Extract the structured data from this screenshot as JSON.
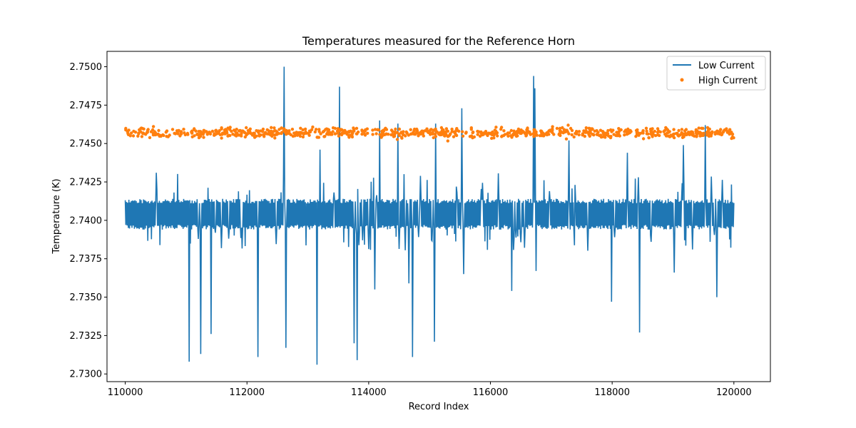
{
  "chart_data": {
    "type": "line",
    "title": "Temperatures measured for the Reference Horn",
    "xlabel": "Record Index",
    "ylabel": "Temperature (K)",
    "xlim": [
      109700,
      120600
    ],
    "ylim": [
      2.7295,
      2.751
    ],
    "xticks": [
      110000,
      112000,
      114000,
      116000,
      118000,
      120000
    ],
    "yticks": [
      2.73,
      2.7325,
      2.735,
      2.7375,
      2.74,
      2.7425,
      2.745,
      2.7475,
      2.75
    ],
    "xtick_labels": [
      "110000",
      "112000",
      "114000",
      "116000",
      "118000",
      "120000"
    ],
    "ytick_labels": [
      "2.7300",
      "2.7325",
      "2.7350",
      "2.7375",
      "2.7400",
      "2.7425",
      "2.7450",
      "2.7475",
      "2.7500"
    ],
    "legend_position": "top-right",
    "series": [
      {
        "name": "Low Current",
        "kind": "line",
        "color": "#1f77b4",
        "x_range": [
          110000,
          120000
        ],
        "baseline_low": 2.7394,
        "baseline_high": 2.7414,
        "spikes": [
          {
            "x": 111050,
            "y": 2.7308
          },
          {
            "x": 111240,
            "y": 2.7313
          },
          {
            "x": 111410,
            "y": 2.7326
          },
          {
            "x": 112180,
            "y": 2.7311
          },
          {
            "x": 112610,
            "y": 2.75
          },
          {
            "x": 112640,
            "y": 2.7317
          },
          {
            "x": 113150,
            "y": 2.7306
          },
          {
            "x": 113200,
            "y": 2.7446
          },
          {
            "x": 113520,
            "y": 2.7487
          },
          {
            "x": 113760,
            "y": 2.732
          },
          {
            "x": 113810,
            "y": 2.7309
          },
          {
            "x": 114100,
            "y": 2.7355
          },
          {
            "x": 114180,
            "y": 2.7465
          },
          {
            "x": 114480,
            "y": 2.7463
          },
          {
            "x": 114660,
            "y": 2.7359
          },
          {
            "x": 114720,
            "y": 2.7311
          },
          {
            "x": 115080,
            "y": 2.7321
          },
          {
            "x": 115100,
            "y": 2.7463
          },
          {
            "x": 115530,
            "y": 2.7473
          },
          {
            "x": 115560,
            "y": 2.7365
          },
          {
            "x": 116350,
            "y": 2.7354
          },
          {
            "x": 116710,
            "y": 2.7494
          },
          {
            "x": 116730,
            "y": 2.7486
          },
          {
            "x": 116750,
            "y": 2.7367
          },
          {
            "x": 117290,
            "y": 2.7452
          },
          {
            "x": 117990,
            "y": 2.7347
          },
          {
            "x": 118250,
            "y": 2.7444
          },
          {
            "x": 118450,
            "y": 2.7327
          },
          {
            "x": 119020,
            "y": 2.7366
          },
          {
            "x": 119170,
            "y": 2.7449
          },
          {
            "x": 119530,
            "y": 2.7462
          },
          {
            "x": 119720,
            "y": 2.735
          }
        ]
      },
      {
        "name": "High Current",
        "kind": "scatter",
        "color": "#ff7f0e",
        "x_range": [
          110000,
          120000
        ],
        "center": 2.7457,
        "spread": 0.0003
      }
    ]
  }
}
